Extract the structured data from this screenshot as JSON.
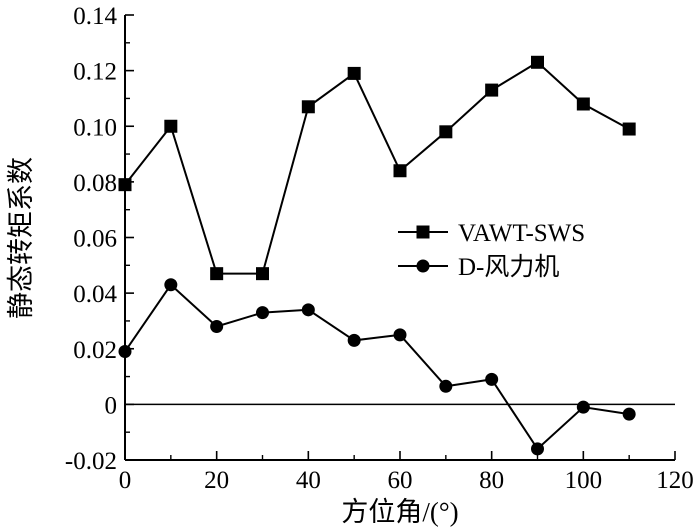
{
  "chart_data": {
    "type": "line",
    "title": "",
    "xlabel": "方位角/(°)",
    "ylabel": "静态转矩系数",
    "xlim": [
      0,
      120
    ],
    "ylim": [
      -0.02,
      0.14
    ],
    "x_ticks": [
      0,
      20,
      40,
      60,
      80,
      100,
      120
    ],
    "x_tick_labels": [
      "0",
      "20",
      "40",
      "60",
      "80",
      "100",
      "120"
    ],
    "y_ticks": [
      -0.02,
      0,
      0.02,
      0.04,
      0.06,
      0.08,
      0.1,
      0.12,
      0.14
    ],
    "y_tick_labels": [
      "-0.02",
      "0",
      "0.02",
      "0.04",
      "0.06",
      "0.08",
      "0.10",
      "0.12",
      "0.14"
    ],
    "grid": false,
    "reference_line_y": 0,
    "legend_position": "middle-right",
    "x": [
      0,
      10,
      20,
      30,
      40,
      50,
      60,
      70,
      80,
      90,
      100,
      110
    ],
    "series": [
      {
        "name": "VAWT-SWS",
        "marker": "square",
        "color": "#000000",
        "values": [
          0.079,
          0.1,
          0.047,
          0.047,
          0.107,
          0.119,
          0.084,
          0.098,
          0.113,
          0.123,
          0.108,
          0.099
        ]
      },
      {
        "name": "D-风力机",
        "marker": "circle",
        "color": "#000000",
        "values": [
          0.019,
          0.043,
          0.028,
          0.033,
          0.034,
          0.023,
          0.025,
          0.0065,
          0.009,
          -0.016,
          -0.001,
          -0.0035
        ]
      }
    ]
  }
}
